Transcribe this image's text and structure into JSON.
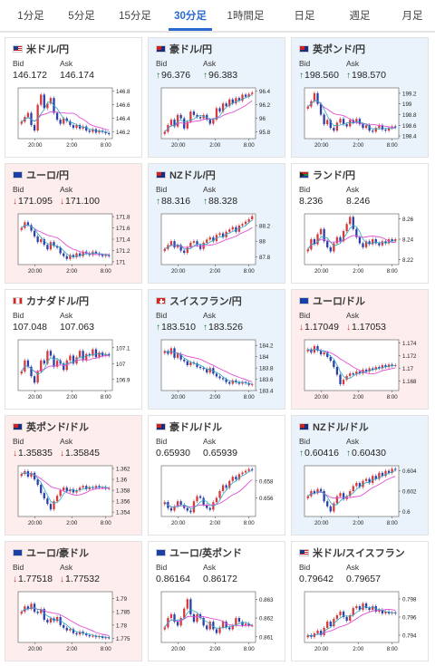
{
  "tabs": [
    {
      "label": "1分足",
      "active": false
    },
    {
      "label": "5分足",
      "active": false
    },
    {
      "label": "15分足",
      "active": false
    },
    {
      "label": "30分足",
      "active": true
    },
    {
      "label": "1時間足",
      "active": false
    },
    {
      "label": "日足",
      "active": false
    },
    {
      "label": "週足",
      "active": false
    },
    {
      "label": "月足",
      "active": false
    }
  ],
  "labels": {
    "bid": "Bid",
    "ask": "Ask"
  },
  "colors": {
    "up_bg": "#eaf3fb",
    "down_bg": "#fdeded",
    "bull": "#d63a3a",
    "bear": "#2c3fa8",
    "ma": "#e24fd6",
    "trend": "#2aa8c8"
  },
  "pairs": [
    {
      "name": "米ドル/円",
      "flag": "us-flag-icon",
      "trend": "none",
      "bid": "146.172",
      "ask": "146.174",
      "chart_data": {
        "type": "candlestick",
        "xticks": [
          "20:00",
          "2:00",
          "8:00"
        ],
        "yticks": [
          "146.8",
          "146.6",
          "146.4",
          "146.2"
        ],
        "ylim": [
          146.1,
          146.85
        ],
        "close": [
          146.35,
          146.42,
          146.48,
          146.3,
          146.22,
          146.6,
          146.75,
          146.55,
          146.62,
          146.7,
          146.48,
          146.38,
          146.32,
          146.4,
          146.36,
          146.3,
          146.26,
          146.3,
          146.25,
          146.28,
          146.22,
          146.2,
          146.24,
          146.19,
          146.22,
          146.2,
          146.18,
          146.17
        ]
      }
    },
    {
      "name": "豪ドル/円",
      "flag": "au-flag-icon",
      "trend": "up",
      "bid": "96.376",
      "ask": "96.383",
      "chart_data": {
        "type": "candlestick",
        "xticks": [
          "20:00",
          "2:00",
          "8:00"
        ],
        "yticks": [
          "96.4",
          "96.2",
          "96",
          "95.8"
        ],
        "ylim": [
          95.7,
          96.45
        ],
        "close": [
          95.8,
          95.9,
          95.98,
          95.88,
          96.05,
          96.0,
          95.85,
          95.95,
          96.1,
          96.05,
          96.02,
          96.0,
          96.05,
          95.98,
          95.92,
          95.98,
          96.15,
          96.1,
          96.22,
          96.18,
          96.28,
          96.22,
          96.3,
          96.26,
          96.35,
          96.32,
          96.36,
          96.38
        ]
      }
    },
    {
      "name": "英ポンド/円",
      "flag": "uk-flag-icon",
      "trend": "up",
      "bid": "198.560",
      "ask": "198.570",
      "chart_data": {
        "type": "candlestick",
        "xticks": [
          "20:00",
          "2:00",
          "8:00"
        ],
        "yticks": [
          "199.2",
          "199",
          "198.8",
          "198.6",
          "198.4"
        ],
        "ylim": [
          198.35,
          199.3
        ],
        "close": [
          198.95,
          199.05,
          199.2,
          199.0,
          198.8,
          198.62,
          198.7,
          198.55,
          198.5,
          198.65,
          198.72,
          198.62,
          198.58,
          198.7,
          198.65,
          198.72,
          198.62,
          198.55,
          198.6,
          198.5,
          198.48,
          198.55,
          198.6,
          198.52,
          198.5,
          198.55,
          198.58,
          198.56
        ]
      }
    },
    {
      "name": "ユーロ/円",
      "flag": "eu-flag-icon",
      "trend": "down",
      "bid": "171.095",
      "ask": "171.100",
      "chart_data": {
        "type": "candlestick",
        "xticks": [
          "20:00",
          "2:00",
          "8:00"
        ],
        "yticks": [
          "171.8",
          "171.6",
          "171.4",
          "171.2",
          "171"
        ],
        "ylim": [
          170.95,
          171.85
        ],
        "close": [
          171.6,
          171.7,
          171.65,
          171.55,
          171.45,
          171.35,
          171.4,
          171.3,
          171.22,
          171.35,
          171.28,
          171.25,
          171.15,
          171.1,
          171.05,
          171.12,
          171.08,
          171.15,
          171.1,
          171.18,
          171.15,
          171.12,
          171.18,
          171.15,
          171.12,
          171.1,
          171.12,
          171.1
        ]
      }
    },
    {
      "name": "NZドル/円",
      "flag": "nz-flag-icon",
      "trend": "up",
      "bid": "88.316",
      "ask": "88.328",
      "chart_data": {
        "type": "candlestick",
        "xticks": [
          "20:00",
          "2:00",
          "8:00"
        ],
        "yticks": [
          "88.2",
          "88",
          "87.8"
        ],
        "ylim": [
          87.7,
          88.35
        ],
        "close": [
          87.9,
          87.95,
          88.0,
          87.92,
          87.95,
          87.88,
          87.85,
          87.92,
          87.98,
          88.0,
          87.95,
          87.9,
          87.98,
          88.02,
          88.05,
          88.0,
          88.08,
          88.1,
          88.05,
          88.12,
          88.15,
          88.18,
          88.12,
          88.2,
          88.22,
          88.25,
          88.28,
          88.32
        ]
      }
    },
    {
      "name": "ランド/円",
      "flag": "za-flag-icon",
      "trend": "none",
      "bid": "8.236",
      "ask": "8.246",
      "chart_data": {
        "type": "candlestick",
        "xticks": [
          "20:00",
          "2:00",
          "8:00"
        ],
        "yticks": [
          "8.26",
          "8.24",
          "8.22"
        ],
        "ylim": [
          8.215,
          8.265
        ],
        "close": [
          8.23,
          8.24,
          8.235,
          8.245,
          8.25,
          8.238,
          8.232,
          8.228,
          8.236,
          8.242,
          8.238,
          8.248,
          8.255,
          8.262,
          8.25,
          8.242,
          8.236,
          8.232,
          8.238,
          8.235,
          8.24,
          8.236,
          8.234,
          8.238,
          8.236,
          8.24,
          8.238,
          8.24
        ]
      }
    },
    {
      "name": "カナダドル/円",
      "flag": "ca-flag-icon",
      "trend": "none",
      "bid": "107.048",
      "ask": "107.063",
      "chart_data": {
        "type": "candlestick",
        "xticks": [
          "20:00",
          "2:00",
          "8:00"
        ],
        "yticks": [
          "107.1",
          "107",
          "106.9"
        ],
        "ylim": [
          106.83,
          107.15
        ],
        "close": [
          106.95,
          107.02,
          106.98,
          106.92,
          106.88,
          106.95,
          107.02,
          107.0,
          107.08,
          107.05,
          106.98,
          107.02,
          107.0,
          106.96,
          107.02,
          107.05,
          107.0,
          107.04,
          107.08,
          107.02,
          107.06,
          107.05,
          107.09,
          107.04,
          107.07,
          107.05,
          107.06,
          107.05
        ]
      }
    },
    {
      "name": "スイスフラン/円",
      "flag": "ch-flag-icon",
      "trend": "up",
      "bid": "183.510",
      "ask": "183.526",
      "chart_data": {
        "type": "candlestick",
        "xticks": [
          "20:00",
          "2:00",
          "8:00"
        ],
        "yticks": [
          "184.2",
          "184",
          "183.8",
          "183.6",
          "183.4"
        ],
        "ylim": [
          183.4,
          184.3
        ],
        "close": [
          184.1,
          184.05,
          184.15,
          183.98,
          184.05,
          183.95,
          183.92,
          183.85,
          183.9,
          183.88,
          183.82,
          183.8,
          183.78,
          183.72,
          183.8,
          183.7,
          183.65,
          183.62,
          183.6,
          183.55,
          183.52,
          183.58,
          183.55,
          183.52,
          183.55,
          183.53,
          183.5,
          183.51
        ]
      }
    },
    {
      "name": "ユーロ/ドル",
      "flag": "eu-flag-icon",
      "trend": "down",
      "bid": "1.17049",
      "ask": "1.17053",
      "chart_data": {
        "type": "candlestick",
        "xticks": [
          "20:00",
          "2:00",
          "8:00"
        ],
        "yticks": [
          "1.174",
          "1.172",
          "1.17",
          "1.168"
        ],
        "ylim": [
          1.1665,
          1.1745
        ],
        "close": [
          1.173,
          1.1725,
          1.1735,
          1.1728,
          1.1722,
          1.1725,
          1.1718,
          1.1712,
          1.1702,
          1.169,
          1.1675,
          1.1682,
          1.1688,
          1.1692,
          1.169,
          1.1695,
          1.1692,
          1.1698,
          1.1695,
          1.17,
          1.1698,
          1.1702,
          1.17,
          1.1705,
          1.1702,
          1.1706,
          1.1704,
          1.1705
        ]
      }
    },
    {
      "name": "英ポンド/ドル",
      "flag": "uk-flag-icon",
      "trend": "down",
      "bid": "1.35835",
      "ask": "1.35845",
      "chart_data": {
        "type": "candlestick",
        "xticks": [
          "20:00",
          "2:00",
          "8:00"
        ],
        "yticks": [
          "1.362",
          "1.36",
          "1.358",
          "1.356",
          "1.354"
        ],
        "ylim": [
          1.3532,
          1.3625
        ],
        "close": [
          1.361,
          1.3615,
          1.3605,
          1.3612,
          1.36,
          1.359,
          1.3575,
          1.3565,
          1.3555,
          1.3545,
          1.356,
          1.357,
          1.358,
          1.3585,
          1.3578,
          1.3582,
          1.3576,
          1.358,
          1.3585,
          1.3588,
          1.3582,
          1.3586,
          1.3584,
          1.3588,
          1.3585,
          1.3586,
          1.3583,
          1.3584
        ]
      }
    },
    {
      "name": "豪ドル/ドル",
      "flag": "au-flag-icon",
      "trend": "none",
      "bid": "0.65930",
      "ask": "0.65939",
      "chart_data": {
        "type": "candlestick",
        "xticks": [
          "20:00",
          "2:00",
          "8:00"
        ],
        "yticks": [
          "0.658",
          "0.656"
        ],
        "ylim": [
          0.6538,
          0.6598
        ],
        "close": [
          0.6555,
          0.6548,
          0.6545,
          0.655,
          0.6556,
          0.6552,
          0.6548,
          0.6545,
          0.6543,
          0.6556,
          0.6562,
          0.656,
          0.6552,
          0.6548,
          0.6546,
          0.6555,
          0.656,
          0.6568,
          0.6575,
          0.6572,
          0.658,
          0.6585,
          0.6582,
          0.6588,
          0.659,
          0.6592,
          0.6594,
          0.6593
        ]
      }
    },
    {
      "name": "NZドル/ドル",
      "flag": "nz-flag-icon",
      "trend": "up",
      "bid": "0.60416",
      "ask": "0.60430",
      "chart_data": {
        "type": "candlestick",
        "xticks": [
          "20:00",
          "2:00",
          "8:00"
        ],
        "yticks": [
          "0.604",
          "0.602",
          "0.6"
        ],
        "ylim": [
          0.5995,
          0.6045
        ],
        "close": [
          0.6015,
          0.602,
          0.6018,
          0.6022,
          0.602,
          0.601,
          0.6005,
          0.6,
          0.6008,
          0.6015,
          0.6018,
          0.6012,
          0.6015,
          0.602,
          0.6025,
          0.6028,
          0.6024,
          0.603,
          0.6032,
          0.6028,
          0.6035,
          0.6032,
          0.6038,
          0.6035,
          0.604,
          0.6038,
          0.6042,
          0.6041
        ]
      }
    },
    {
      "name": "ユーロ/豪ドル",
      "flag": "eu-flag-icon",
      "trend": "down",
      "bid": "1.77518",
      "ask": "1.77532",
      "chart_data": {
        "type": "candlestick",
        "xticks": [
          "20:00",
          "2:00",
          "8:00"
        ],
        "yticks": [
          "1.79",
          "1.785",
          "1.78",
          "1.775"
        ],
        "ylim": [
          1.7735,
          1.7925
        ],
        "close": [
          1.785,
          1.787,
          1.786,
          1.788,
          1.785,
          1.7845,
          1.786,
          1.782,
          1.781,
          1.7825,
          1.7815,
          1.783,
          1.78,
          1.779,
          1.778,
          1.7785,
          1.777,
          1.7765,
          1.7775,
          1.7768,
          1.7762,
          1.7758,
          1.776,
          1.7755,
          1.7758,
          1.7752,
          1.7754,
          1.7752
        ]
      }
    },
    {
      "name": "ユーロ/英ポンド",
      "flag": "eu-flag-icon",
      "trend": "none",
      "bid": "0.86164",
      "ask": "0.86172",
      "chart_data": {
        "type": "candlestick",
        "xticks": [
          "20:00",
          "2:00",
          "8:00"
        ],
        "yticks": [
          "0.863",
          "0.862",
          "0.861"
        ],
        "ylim": [
          0.8607,
          0.8634
        ],
        "close": [
          0.8615,
          0.862,
          0.8622,
          0.8618,
          0.8616,
          0.862,
          0.8625,
          0.863,
          0.8622,
          0.8618,
          0.8622,
          0.862,
          0.8616,
          0.8614,
          0.8618,
          0.8614,
          0.8612,
          0.8615,
          0.8618,
          0.8615,
          0.8614,
          0.8616,
          0.862,
          0.8618,
          0.8616,
          0.8617,
          0.8616,
          0.8616
        ]
      }
    },
    {
      "name": "米ドル/スイスフラン",
      "flag": "us-flag-icon",
      "trend": "none",
      "bid": "0.79642",
      "ask": "0.79657",
      "chart_data": {
        "type": "candlestick",
        "xticks": [
          "20:00",
          "2:00",
          "8:00"
        ],
        "yticks": [
          "0.798",
          "0.796",
          "0.794"
        ],
        "ylim": [
          0.7932,
          0.7988
        ],
        "close": [
          0.794,
          0.7938,
          0.7942,
          0.7945,
          0.794,
          0.7948,
          0.7955,
          0.795,
          0.7958,
          0.7962,
          0.7966,
          0.796,
          0.7956,
          0.7962,
          0.797,
          0.7972,
          0.7968,
          0.7975,
          0.797,
          0.7968,
          0.7972,
          0.7966,
          0.7968,
          0.7964,
          0.7966,
          0.7964,
          0.7965,
          0.7964
        ]
      }
    }
  ]
}
